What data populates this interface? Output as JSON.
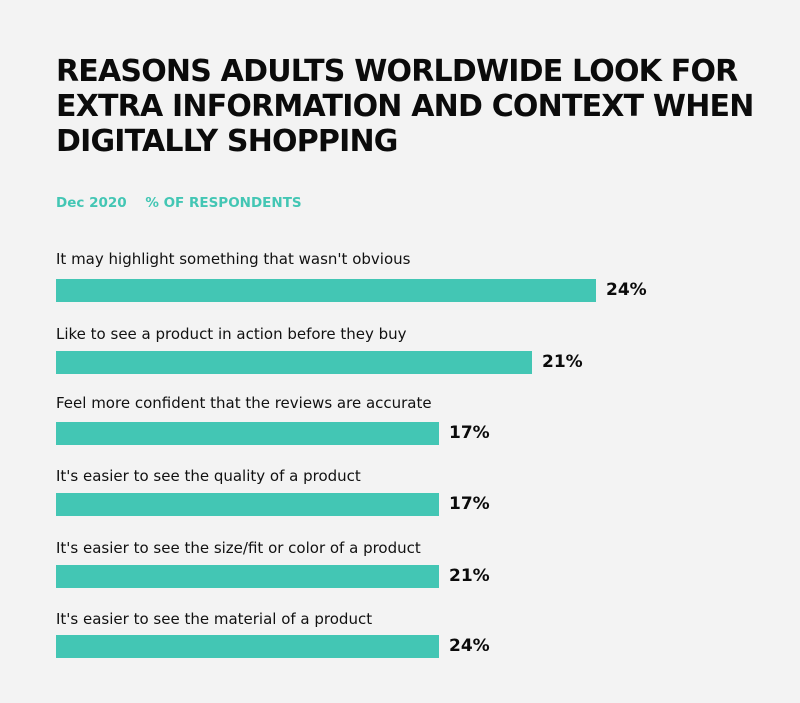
{
  "chart_data": {
    "type": "bar",
    "orientation": "horizontal",
    "title": "REASONS ADULTS WORLDWIDE LOOK FOR EXTRA INFORMATION AND CONTEXT WHEN DIGITALLY SHOPPING",
    "date": "Dec 2020",
    "unit_label": "% OF RESPONDENTS",
    "categories": [
      "It may highlight something that wasn't obvious",
      "Like to see a product in action before they buy",
      "Feel more confident that the reviews are accurate",
      "It's easier to see the quality of a product",
      "It's easier to see the size/fit or color of a product",
      "It's easier to see the material of a product"
    ],
    "values": [
      24,
      21,
      17,
      17,
      21,
      24
    ],
    "value_labels": [
      "24%",
      "21%",
      "17%",
      "17%",
      "21%",
      "24%"
    ],
    "bar_color": "#43c6b4",
    "grid": false,
    "legend": "none"
  }
}
